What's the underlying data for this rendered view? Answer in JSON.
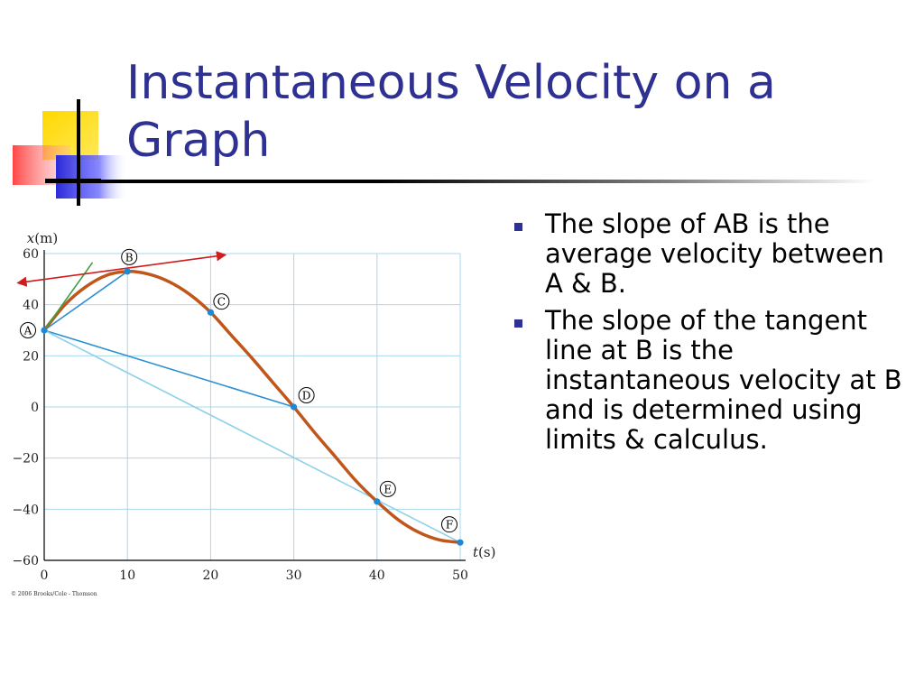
{
  "slide": {
    "title": "Instantaneous Velocity on a Graph",
    "bullets": [
      "The slope of AB is the average velocity between A & B.",
      "The slope of the tangent line at B is the instantaneous velocity at B and is determined using limits & calculus."
    ],
    "colors": {
      "title": "#2e3192",
      "bullet": "#2e3192"
    }
  },
  "chart_data": {
    "type": "line",
    "title": "",
    "xlabel": "t (s)",
    "ylabel": "x (m)",
    "xlim": [
      0,
      50
    ],
    "ylim": [
      -60,
      60
    ],
    "x_ticks": [
      0,
      10,
      20,
      30,
      40,
      50
    ],
    "y_ticks": [
      60,
      40,
      20,
      0,
      -20,
      -40,
      -60
    ],
    "x_tick_labels": [
      "0",
      "10",
      "20",
      "30",
      "40",
      "50"
    ],
    "y_tick_labels": [
      "60",
      "40",
      "20",
      "0",
      "−20",
      "−40",
      "−60"
    ],
    "grid": true,
    "points": [
      {
        "label": "A",
        "t": 0,
        "x": 30
      },
      {
        "label": "B",
        "t": 10,
        "x": 53
      },
      {
        "label": "C",
        "t": 20,
        "x": 37
      },
      {
        "label": "D",
        "t": 30,
        "x": 0
      },
      {
        "label": "E",
        "t": 40,
        "x": -37
      },
      {
        "label": "F",
        "t": 50,
        "x": -53
      }
    ],
    "series": [
      {
        "x": [
          0,
          2.5,
          5,
          7.5,
          10,
          12.5,
          15,
          17.5,
          20,
          22.5,
          25,
          27.5,
          30,
          32.5,
          35,
          37.5,
          40,
          42.5,
          45,
          47.5,
          50
        ],
        "y": [
          30,
          40,
          47,
          51.5,
          53,
          52,
          49,
          44,
          37,
          28,
          19,
          9.5,
          0,
          -10,
          -19.5,
          -29,
          -37,
          -44,
          -49,
          -52,
          -53
        ],
        "color": "#c0561a"
      }
    ],
    "secant_lines": [
      {
        "from": "A",
        "to": "B",
        "color": "#2b8fd1"
      },
      {
        "from": "A",
        "to": "D",
        "color": "#2b8fd1"
      },
      {
        "from": "A",
        "to": "F",
        "color": "#8fd0ea"
      }
    ],
    "tangent_lines": [
      {
        "at": "A",
        "x1": 0,
        "y1": 30,
        "x2": 5.8,
        "y2": 56.5,
        "color": "#3aa142"
      },
      {
        "at": "B",
        "x1": -3.2,
        "y1": 48.5,
        "x2": 21.8,
        "y2": 59.5,
        "color": "#d01c1c",
        "arrows": true
      }
    ],
    "footnote": "© 2006 Brooks/Cole - Thomson",
    "colors": {
      "grid": "#a9d8ec",
      "axis": "#000000",
      "point": "#1e88d2",
      "label_circle": "#000000"
    }
  }
}
